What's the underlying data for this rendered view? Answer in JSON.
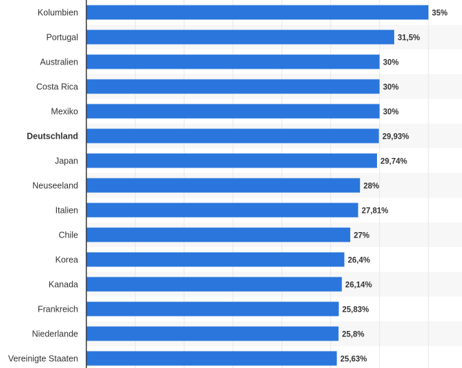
{
  "chart_data": {
    "type": "bar",
    "orientation": "horizontal",
    "categories": [
      "Kolumbien",
      "Portugal",
      "Australien",
      "Costa Rica",
      "Mexiko",
      "Deutschland",
      "Japan",
      "Neuseeland",
      "Italien",
      "Chile",
      "Korea",
      "Kanada",
      "Frankreich",
      "Niederlande",
      "Vereinigte Staaten"
    ],
    "values": [
      35,
      31.5,
      30,
      30,
      30,
      29.93,
      29.74,
      28,
      27.81,
      27,
      26.4,
      26.14,
      25.83,
      25.8,
      25.63
    ],
    "value_labels": [
      "35%",
      "31,5%",
      "30%",
      "30%",
      "30%",
      "29,93%",
      "29,74%",
      "28%",
      "27,81%",
      "27%",
      "26,4%",
      "26,14%",
      "25,83%",
      "25,8%",
      "25,63%"
    ],
    "highlighted_category": "Deutschland",
    "xlim": [
      0,
      35
    ],
    "grid": true,
    "bar_color": "#2a76dd",
    "alternate_row_color": "#f7f7f7",
    "grid_color": "#e6e6e6",
    "axis_color": "#333333"
  }
}
